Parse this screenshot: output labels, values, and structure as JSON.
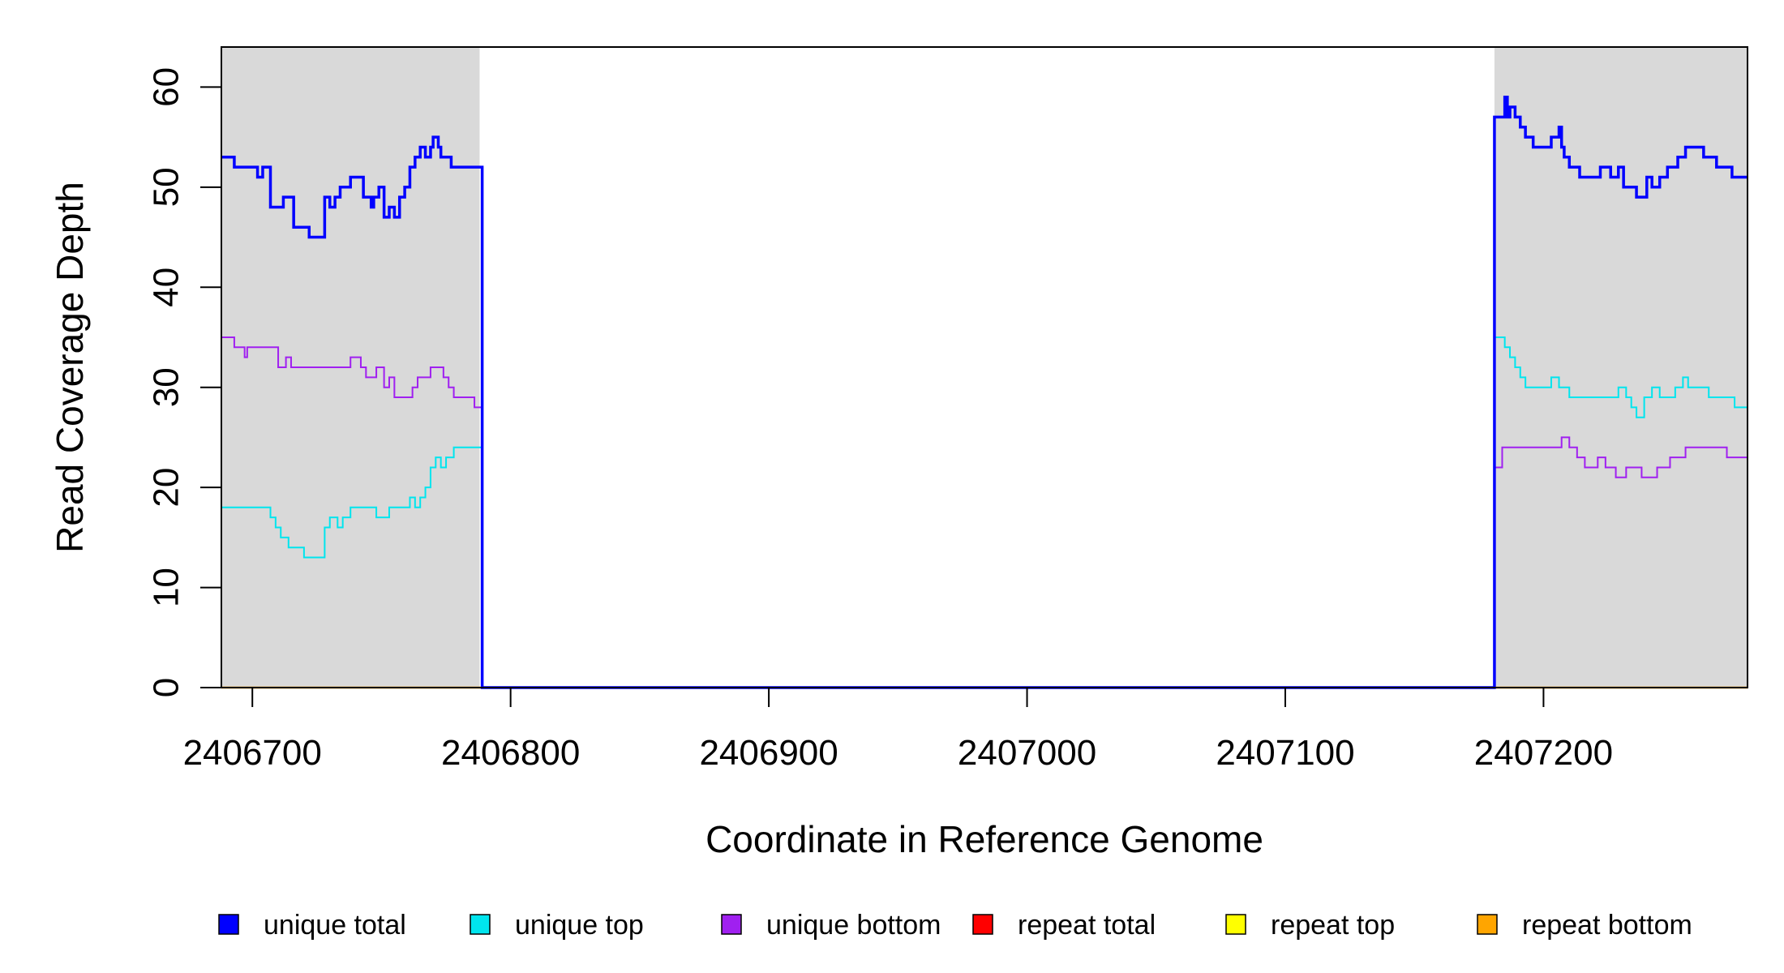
{
  "chart_data": {
    "type": "line",
    "title": "",
    "xlabel": "Coordinate in Reference Genome",
    "ylabel": "Read Coverage Depth",
    "xlim": [
      2406688,
      2407279
    ],
    "ylim": [
      0,
      64
    ],
    "x_ticks": [
      2406700,
      2406800,
      2406900,
      2407000,
      2407100,
      2407200
    ],
    "y_ticks": [
      0,
      10,
      20,
      30,
      40,
      50,
      60
    ],
    "x_tick_labels": [
      "2406700",
      "2406800",
      "2406900",
      "2407000",
      "2407100",
      "2407200"
    ],
    "y_tick_labels": [
      "0",
      "10",
      "20",
      "30",
      "40",
      "50",
      "60"
    ],
    "grid": false,
    "legend_position": "bottom",
    "shaded_regions": [
      {
        "x0": 2406688,
        "x1": 2406788,
        "color": "#d9d9d9"
      },
      {
        "x0": 2407181,
        "x1": 2407279,
        "color": "#d9d9d9"
      }
    ],
    "series": [
      {
        "name": "unique total",
        "color": "#0000ff",
        "x": [
          2406688,
          2406693,
          2406698,
          2406702,
          2406704,
          2406707,
          2406712,
          2406716,
          2406718,
          2406722,
          2406728,
          2406730,
          2406732,
          2406734,
          2406736,
          2406738,
          2406743,
          2406746,
          2406747,
          2406749,
          2406751,
          2406753,
          2406755,
          2406757,
          2406759,
          2406761,
          2406763,
          2406765,
          2406767,
          2406769,
          2406770,
          2406772,
          2406773,
          2406775,
          2406777,
          2406788,
          2406789,
          2407179,
          2407181,
          2407185,
          2407186,
          2407187,
          2407189,
          2407191,
          2407193,
          2407194,
          2407196,
          2407203,
          2407206,
          2407207,
          2407208,
          2407210,
          2407214,
          2407222,
          2407226,
          2407229,
          2407231,
          2407233,
          2407236,
          2407240,
          2407242,
          2407245,
          2407248,
          2407252,
          2407255,
          2407258,
          2407262,
          2407267,
          2407273,
          2407279
        ],
        "y": [
          53,
          52,
          52,
          51,
          52,
          48,
          49,
          46,
          46,
          45,
          49,
          48,
          49,
          50,
          50,
          51,
          49,
          48,
          49,
          50,
          47,
          48,
          47,
          49,
          50,
          52,
          53,
          54,
          53,
          54,
          55,
          54,
          53,
          53,
          52,
          52,
          0,
          0,
          57,
          59,
          57,
          58,
          57,
          56,
          55,
          55,
          54,
          55,
          56,
          54,
          53,
          52,
          51,
          52,
          51,
          52,
          50,
          50,
          49,
          51,
          50,
          51,
          52,
          53,
          54,
          54,
          53,
          52,
          51,
          51
        ]
      },
      {
        "name": "unique top",
        "color": "#00e5ee",
        "x": [
          2406688,
          2406707,
          2406709,
          2406711,
          2406714,
          2406716,
          2406720,
          2406724,
          2406728,
          2406730,
          2406733,
          2406735,
          2406738,
          2406742,
          2406748,
          2406753,
          2406758,
          2406761,
          2406763,
          2406765,
          2406767,
          2406769,
          2406771,
          2406773,
          2406775,
          2406778,
          2406788,
          2406789,
          2407179,
          2407181,
          2407185,
          2407187,
          2407189,
          2407191,
          2407193,
          2407196,
          2407203,
          2407206,
          2407207,
          2407210,
          2407229,
          2407232,
          2407234,
          2407236,
          2407239,
          2407242,
          2407245,
          2407251,
          2407254,
          2407256,
          2407264,
          2407268,
          2407274,
          2407279
        ],
        "y": [
          18,
          17,
          16,
          15,
          14,
          14,
          13,
          13,
          16,
          17,
          16,
          17,
          18,
          18,
          17,
          18,
          18,
          19,
          18,
          19,
          20,
          22,
          23,
          22,
          23,
          24,
          24,
          0,
          0,
          35,
          34,
          33,
          32,
          31,
          30,
          30,
          31,
          30,
          30,
          29,
          30,
          29,
          28,
          27,
          29,
          30,
          29,
          30,
          31,
          30,
          29,
          29,
          28,
          28
        ]
      },
      {
        "name": "unique bottom",
        "color": "#a020f0",
        "x": [
          2406688,
          2406693,
          2406697,
          2406698,
          2406710,
          2406713,
          2406715,
          2406716,
          2406738,
          2406742,
          2406744,
          2406748,
          2406751,
          2406753,
          2406755,
          2406762,
          2406764,
          2406766,
          2406769,
          2406771,
          2406774,
          2406776,
          2406778,
          2406786,
          2406788,
          2406789,
          2407179,
          2407181,
          2407184,
          2407186,
          2407194,
          2407200,
          2407207,
          2407210,
          2407213,
          2407216,
          2407221,
          2407224,
          2407228,
          2407232,
          2407238,
          2407244,
          2407249,
          2407252,
          2407255,
          2407262,
          2407267,
          2407271,
          2407279
        ],
        "y": [
          35,
          34,
          33,
          34,
          32,
          33,
          32,
          32,
          33,
          32,
          31,
          32,
          30,
          31,
          29,
          30,
          31,
          31,
          32,
          32,
          31,
          30,
          29,
          28,
          28,
          0,
          0,
          22,
          24,
          24,
          24,
          24,
          25,
          24,
          23,
          22,
          23,
          22,
          21,
          22,
          21,
          22,
          23,
          23,
          24,
          24,
          24,
          23,
          23
        ]
      },
      {
        "name": "repeat total",
        "color": "#ff0000",
        "x": [
          2406688,
          2407279
        ],
        "y": [
          0,
          0
        ]
      },
      {
        "name": "repeat top",
        "color": "#ffff00",
        "x": [
          2406688,
          2407279
        ],
        "y": [
          0,
          0
        ]
      },
      {
        "name": "repeat bottom",
        "color": "#ffa500",
        "x": [
          2406688,
          2407279
        ],
        "y": [
          0,
          0
        ]
      }
    ]
  }
}
